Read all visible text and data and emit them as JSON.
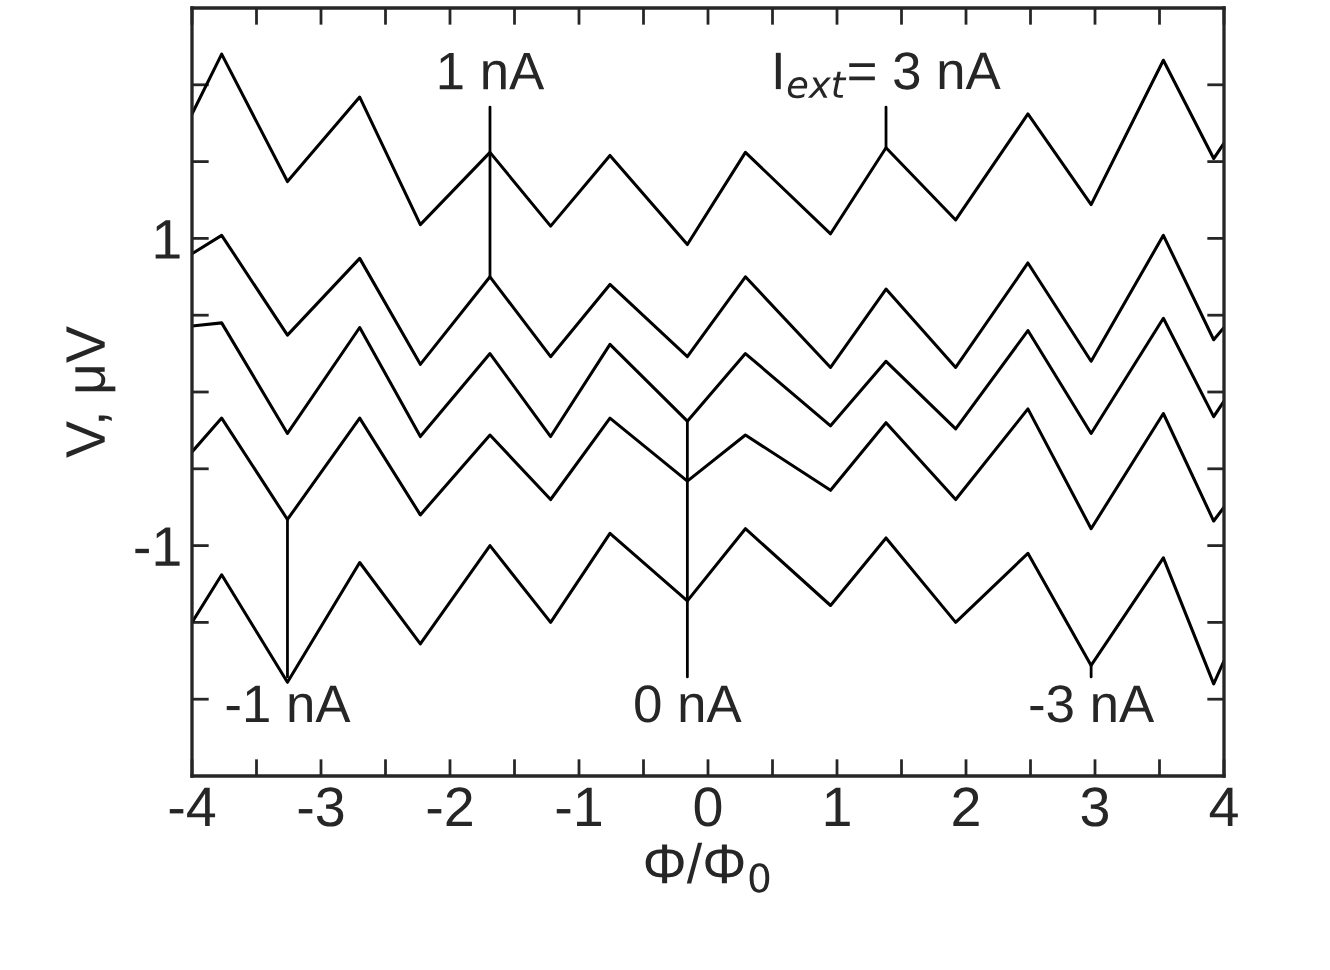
{
  "chart_data": {
    "type": "line",
    "xlabel": "Φ/Φ$_{0}$",
    "ylabel": "V, μV",
    "x": [
      -4.0,
      -3.77,
      -3.26,
      -2.7,
      -2.23,
      -1.69,
      -1.22,
      -0.76,
      -0.16,
      0.29,
      0.95,
      1.38,
      1.92,
      2.48,
      2.97,
      3.53,
      3.92,
      4.0
    ],
    "series": [
      {
        "color": "#000000",
        "values": [
          1.81,
          2.2,
          1.37,
          1.92,
          1.09,
          1.56,
          1.08,
          1.54,
          0.96,
          1.56,
          1.03,
          1.59,
          1.12,
          1.81,
          1.22,
          2.16,
          1.52,
          1.62
        ]
      },
      {
        "color": "#000000",
        "values": [
          0.9,
          1.02,
          0.37,
          0.87,
          0.18,
          0.75,
          0.23,
          0.7,
          0.23,
          0.75,
          0.16,
          0.67,
          0.16,
          0.84,
          0.2,
          1.02,
          0.34,
          0.42
        ]
      },
      {
        "color": "#000000",
        "values": [
          0.43,
          0.45,
          -0.27,
          0.42,
          -0.29,
          0.25,
          -0.29,
          0.31,
          -0.19,
          0.25,
          -0.22,
          0.2,
          -0.24,
          0.4,
          -0.27,
          0.48,
          -0.16,
          -0.06
        ]
      },
      {
        "color": "#000000",
        "values": [
          -0.39,
          -0.17,
          -0.83,
          -0.17,
          -0.8,
          -0.28,
          -0.7,
          -0.17,
          -0.58,
          -0.28,
          -0.64,
          -0.2,
          -0.7,
          -0.11,
          -0.89,
          -0.14,
          -0.84,
          -0.75
        ]
      },
      {
        "color": "#000000",
        "values": [
          -1.5,
          -1.19,
          -1.89,
          -1.11,
          -1.64,
          -1.0,
          -1.5,
          -0.92,
          -1.36,
          -0.89,
          -1.39,
          -0.95,
          -1.5,
          -1.05,
          -1.78,
          -1.08,
          -1.9,
          -1.75
        ]
      }
    ],
    "annotations": [
      {
        "text": "1 nA",
        "x": -1.69,
        "y": 0.75
      },
      {
        "text": "I$_{ext}$= 3 nA",
        "x": 1.38,
        "y": 1.59
      },
      {
        "text": "-1 nA",
        "x": -3.26,
        "y": -0.83
      },
      {
        "text": "0 nA",
        "x": -0.16,
        "y": -0.19
      },
      {
        "text": "-3 nA",
        "x": 2.97,
        "y": -1.78
      }
    ],
    "xlim": [
      -4,
      4
    ],
    "xticks": [
      -4,
      {
        "value": -3.5,
        "label": null
      },
      -3,
      {
        "value": -2.5,
        "label": null
      },
      -2,
      {
        "value": -1.5,
        "label": null
      },
      -1,
      {
        "value": -0.5,
        "label": null
      },
      0,
      {
        "value": 0.5,
        "label": null
      },
      1,
      {
        "value": 1.5,
        "label": null
      },
      2,
      {
        "value": 2.5,
        "label": null
      },
      3,
      {
        "value": 3.5,
        "label": null
      },
      4
    ],
    "ylim": [
      -2.5,
      2.5
    ],
    "yticks": [
      {
        "value": -2,
        "label": null
      },
      {
        "value": -1.5,
        "label": null
      },
      -1,
      {
        "value": -0.5,
        "label": null
      },
      {
        "value": 0,
        "label": null
      },
      {
        "value": 0.5,
        "label": null
      },
      1,
      {
        "value": 1.5,
        "label": null
      },
      {
        "value": 2,
        "label": null
      }
    ],
    "grid": false,
    "legend": false,
    "marker": "none",
    "line_style": "solid"
  }
}
